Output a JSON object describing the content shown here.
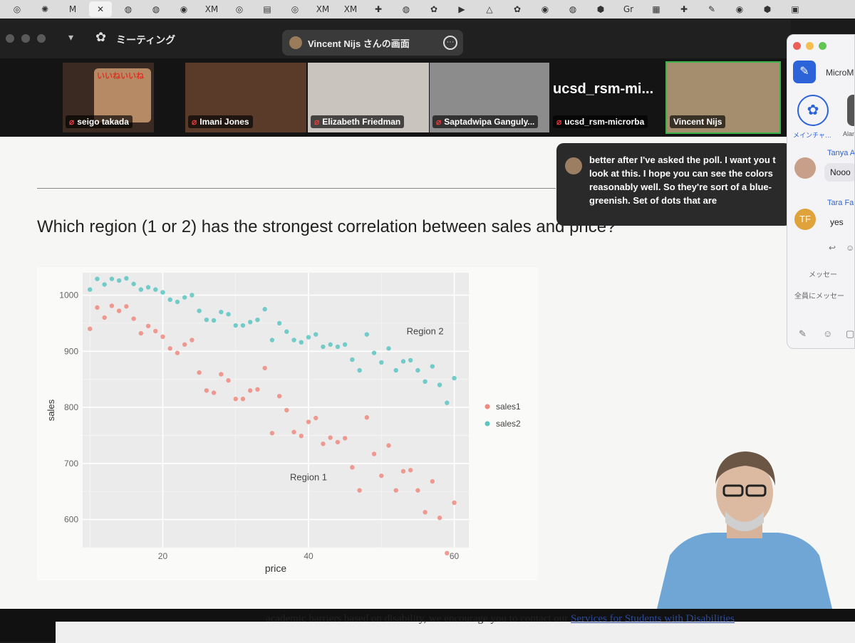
{
  "browser_tabs": [
    {
      "icon": "◎"
    },
    {
      "icon": "✺"
    },
    {
      "icon": "M"
    },
    {
      "icon": "✕",
      "active": true
    },
    {
      "icon": "◍"
    },
    {
      "icon": "◍"
    },
    {
      "icon": "◉"
    },
    {
      "icon": "XM"
    },
    {
      "icon": "◎"
    },
    {
      "icon": "▤"
    },
    {
      "icon": "◎"
    },
    {
      "icon": "XM"
    },
    {
      "icon": "XM"
    },
    {
      "icon": "✚"
    },
    {
      "icon": "◍"
    },
    {
      "icon": "✿"
    },
    {
      "icon": "▶"
    },
    {
      "icon": "△"
    },
    {
      "icon": "✿"
    },
    {
      "icon": "◉"
    },
    {
      "icon": "◍"
    },
    {
      "icon": "⬢"
    },
    {
      "icon": "Gr"
    },
    {
      "icon": "▦"
    },
    {
      "icon": "✚"
    },
    {
      "icon": "✎"
    },
    {
      "icon": "◉"
    },
    {
      "icon": "⬢"
    },
    {
      "icon": "▣"
    }
  ],
  "zoom": {
    "meeting_label": "ミーティング",
    "share_label": "Vincent Nijs さんの画面",
    "more_glyph": "···"
  },
  "participants": [
    {
      "name": "seigo takada",
      "tile_text": "いいねいいね",
      "bg": "#3b2a22"
    },
    {
      "name": "Imani Jones",
      "bg": "#5a3a28"
    },
    {
      "name": "Elizabeth Friedman",
      "bg": "#c9c4bd"
    },
    {
      "name": "Saptadwipa Ganguly...",
      "bg": "#8c8c8c"
    },
    {
      "name": "ucsd_rsm-microrba",
      "big_label": "ucsd_rsm-mi...",
      "bg": "#141414"
    },
    {
      "name": "Vincent Nijs",
      "bg": "#a48e6e",
      "active": true
    }
  ],
  "caption": {
    "text": "better after I've asked the poll. I want you t look at this. I hope you can see the colors reasonably well. So they're sort of a blue-greenish. Set of dots that are"
  },
  "chat": {
    "app_name": "MicroM",
    "channel_label": "メインチャ…",
    "channel2_label": "Alan",
    "messages": [
      {
        "name": "Tanya A",
        "text": "Nooo"
      },
      {
        "name": "Tara Fa",
        "initials": "TF",
        "text": "yes"
      }
    ],
    "recipient": "メッセー",
    "input_placeholder": "全員にメッセー"
  },
  "slide": {
    "question": "Which region (1 or 2) has the strongest correlation between sales and price?"
  },
  "chart_data": {
    "type": "scatter",
    "xlabel": "price",
    "ylabel": "sales",
    "xlim": [
      9,
      62
    ],
    "ylim": [
      550,
      1040
    ],
    "xticks": [
      20,
      40,
      60
    ],
    "yticks": [
      600,
      700,
      800,
      900,
      1000
    ],
    "grid": true,
    "legend_position": "right",
    "annotations": [
      {
        "text": "Region 2",
        "x": 56,
        "y": 930
      },
      {
        "text": "Region 1",
        "x": 40,
        "y": 670
      }
    ],
    "series": [
      {
        "name": "sales1",
        "color": "#f08a80",
        "points": [
          [
            10,
            940
          ],
          [
            11,
            978
          ],
          [
            12,
            960
          ],
          [
            13,
            981
          ],
          [
            14,
            972
          ],
          [
            15,
            980
          ],
          [
            16,
            958
          ],
          [
            17,
            932
          ],
          [
            18,
            945
          ],
          [
            19,
            936
          ],
          [
            20,
            926
          ],
          [
            21,
            905
          ],
          [
            22,
            897
          ],
          [
            23,
            912
          ],
          [
            24,
            920
          ],
          [
            25,
            862
          ],
          [
            26,
            830
          ],
          [
            27,
            826
          ],
          [
            28,
            859
          ],
          [
            29,
            848
          ],
          [
            30,
            815
          ],
          [
            31,
            815
          ],
          [
            32,
            830
          ],
          [
            33,
            832
          ],
          [
            34,
            870
          ],
          [
            35,
            754
          ],
          [
            36,
            820
          ],
          [
            37,
            795
          ],
          [
            38,
            756
          ],
          [
            39,
            749
          ],
          [
            40,
            774
          ],
          [
            41,
            781
          ],
          [
            42,
            735
          ],
          [
            43,
            746
          ],
          [
            44,
            738
          ],
          [
            45,
            745
          ],
          [
            46,
            693
          ],
          [
            47,
            652
          ],
          [
            48,
            782
          ],
          [
            49,
            717
          ],
          [
            50,
            678
          ],
          [
            51,
            732
          ],
          [
            52,
            652
          ],
          [
            53,
            686
          ],
          [
            54,
            688
          ],
          [
            55,
            652
          ],
          [
            56,
            613
          ],
          [
            57,
            668
          ],
          [
            58,
            603
          ],
          [
            59,
            540
          ],
          [
            60,
            630
          ]
        ]
      },
      {
        "name": "sales2",
        "color": "#5cc6c2",
        "points": [
          [
            10,
            1010
          ],
          [
            11,
            1029
          ],
          [
            12,
            1019
          ],
          [
            13,
            1029
          ],
          [
            14,
            1026
          ],
          [
            15,
            1030
          ],
          [
            16,
            1020
          ],
          [
            17,
            1010
          ],
          [
            18,
            1014
          ],
          [
            19,
            1010
          ],
          [
            20,
            1005
          ],
          [
            21,
            992
          ],
          [
            22,
            988
          ],
          [
            23,
            996
          ],
          [
            24,
            1000
          ],
          [
            25,
            972
          ],
          [
            26,
            956
          ],
          [
            27,
            955
          ],
          [
            28,
            970
          ],
          [
            29,
            966
          ],
          [
            30,
            946
          ],
          [
            31,
            946
          ],
          [
            32,
            952
          ],
          [
            33,
            956
          ],
          [
            34,
            975
          ],
          [
            35,
            920
          ],
          [
            36,
            950
          ],
          [
            37,
            935
          ],
          [
            38,
            920
          ],
          [
            39,
            916
          ],
          [
            40,
            925
          ],
          [
            41,
            930
          ],
          [
            42,
            908
          ],
          [
            43,
            912
          ],
          [
            44,
            908
          ],
          [
            45,
            912
          ],
          [
            46,
            885
          ],
          [
            47,
            866
          ],
          [
            48,
            930
          ],
          [
            49,
            897
          ],
          [
            50,
            880
          ],
          [
            51,
            905
          ],
          [
            52,
            866
          ],
          [
            53,
            882
          ],
          [
            54,
            884
          ],
          [
            55,
            866
          ],
          [
            56,
            846
          ],
          [
            57,
            873
          ],
          [
            58,
            840
          ],
          [
            59,
            808
          ],
          [
            60,
            852
          ]
        ]
      }
    ]
  },
  "bottom_text": {
    "prefix": "academic barriers based on disability, we encourage you to contact our ",
    "link": "Services for Students with Disabilities"
  }
}
